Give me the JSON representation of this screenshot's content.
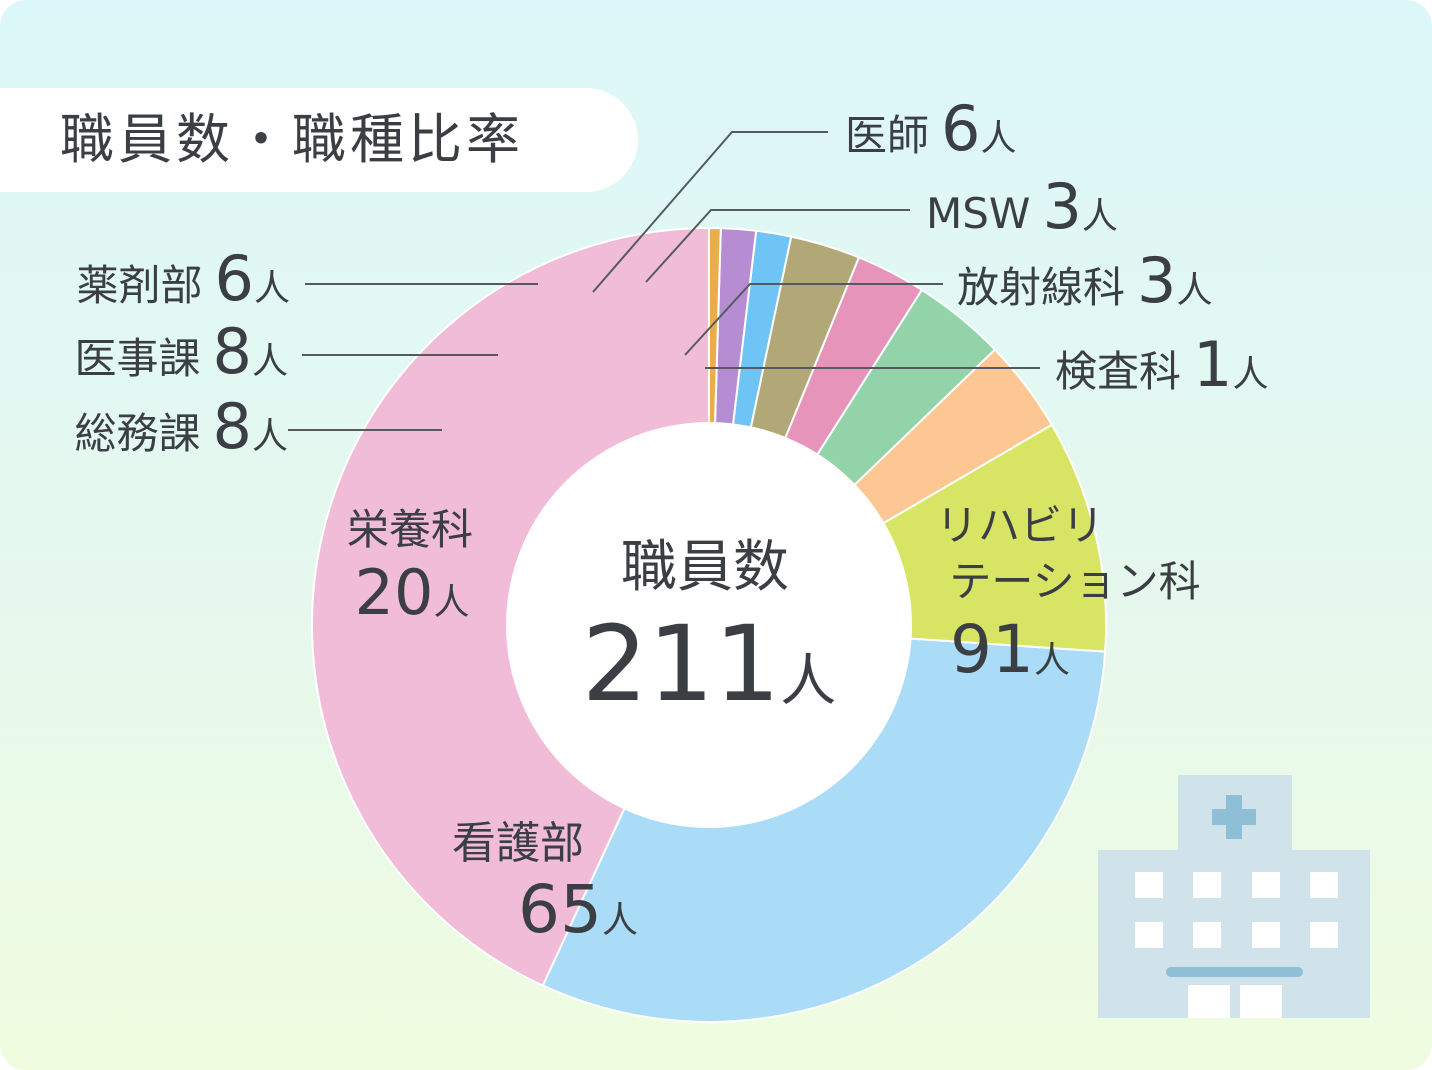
{
  "title": "職員数・職種比率",
  "center": {
    "label": "職員数",
    "number": "211",
    "unit": "人"
  },
  "chart_data": {
    "type": "pie",
    "title": "職員数・職種比率",
    "total": 211,
    "unit": "人",
    "slices": [
      {
        "name": "リハビリテーション科",
        "value": 91,
        "color": "#f1bcd7"
      },
      {
        "name": "看護部",
        "value": 65,
        "color": "#aadcf7"
      },
      {
        "name": "栄養科",
        "value": 20,
        "color": "#d8e564"
      },
      {
        "name": "総務課",
        "value": 8,
        "color": "#fdc794"
      },
      {
        "name": "医事課",
        "value": 8,
        "color": "#93d3aa"
      },
      {
        "name": "薬剤部",
        "value": 6,
        "color": "#e694ba"
      },
      {
        "name": "医師",
        "value": 6,
        "color": "#b2a877"
      },
      {
        "name": "MSW",
        "value": 3,
        "color": "#6ec4f4"
      },
      {
        "name": "放射線科",
        "value": 3,
        "color": "#b68dd3"
      },
      {
        "name": "検査科",
        "value": 1,
        "color": "#eaad4c"
      }
    ]
  },
  "labels": {
    "rehab": {
      "line1": "リハビリ",
      "line2": "テーション科",
      "num": "91",
      "unit": "人"
    },
    "nursing": {
      "name": "看護部",
      "num": "65",
      "unit": "人"
    },
    "nutrition": {
      "name": "栄養科",
      "num": "20",
      "unit": "人"
    },
    "general": {
      "name": "総務課",
      "num": "8",
      "unit": "人"
    },
    "medaffairs": {
      "name": "医事課",
      "num": "8",
      "unit": "人"
    },
    "pharmacy": {
      "name": "薬剤部",
      "num": "6",
      "unit": "人"
    },
    "doctor": {
      "name": "医師",
      "num": "6",
      "unit": "人"
    },
    "msw": {
      "name": "MSW",
      "num": "3",
      "unit": "人"
    },
    "radiology": {
      "name": "放射線科",
      "num": "3",
      "unit": "人"
    },
    "lab": {
      "name": "検査科",
      "num": "1",
      "unit": "人"
    }
  },
  "icons": {
    "decoration": "hospital-building-icon"
  }
}
